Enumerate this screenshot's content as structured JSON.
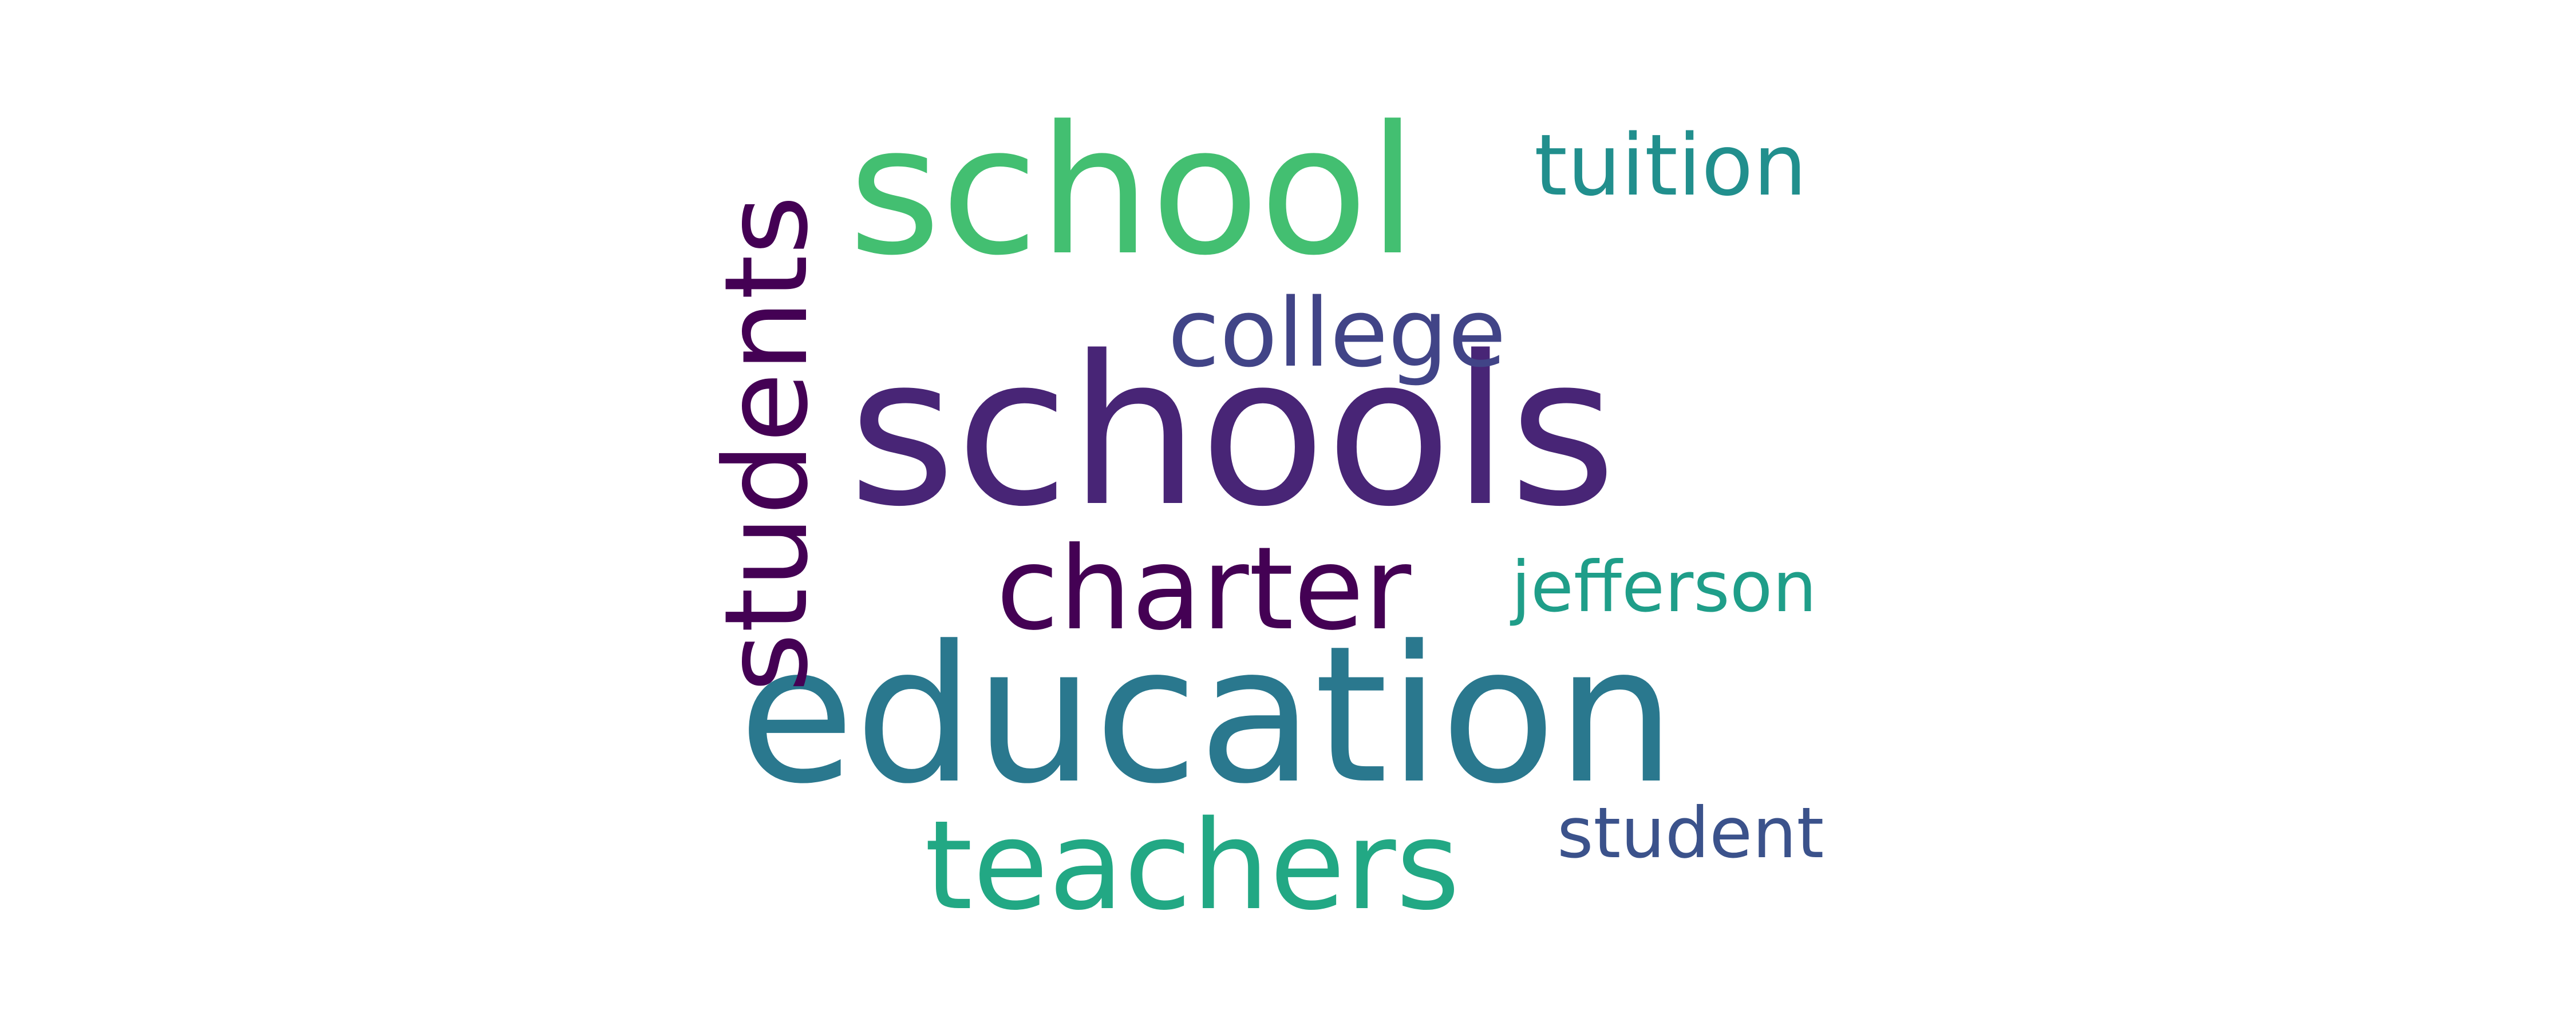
{
  "words": {
    "schools": {
      "text": "schools",
      "color": "#482576"
    },
    "education": {
      "text": "education",
      "color": "#2a788e"
    },
    "school": {
      "text": "school",
      "color": "#43bf71"
    },
    "teachers": {
      "text": "teachers",
      "color": "#22a884"
    },
    "charter": {
      "text": "charter",
      "color": "#440154"
    },
    "college": {
      "text": "college",
      "color": "#414487"
    },
    "tuition": {
      "text": "tuition",
      "color": "#218f8d"
    },
    "jefferson": {
      "text": "jefferson",
      "color": "#1f9e89"
    },
    "student": {
      "text": "student",
      "color": "#3b528b"
    },
    "students": {
      "text": "students",
      "color": "#440154"
    }
  }
}
